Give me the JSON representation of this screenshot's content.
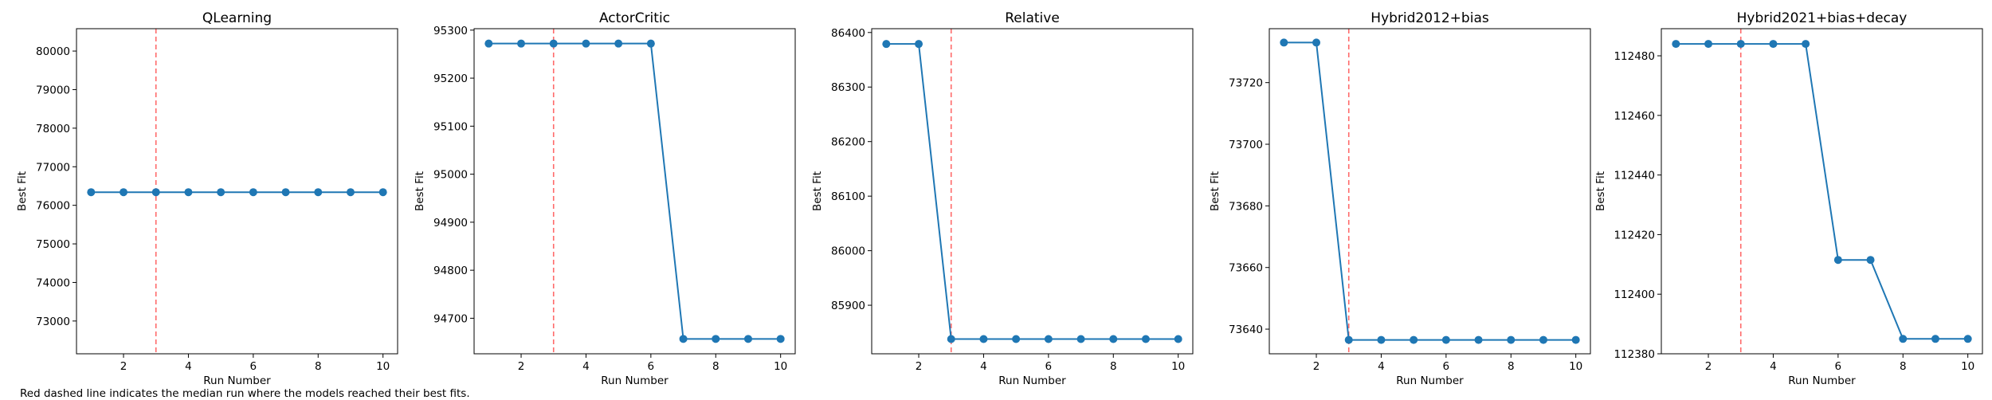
{
  "footnote": "Red dashed line indicates the median run where the models reached their best fits.",
  "colors": {
    "series": "#1f77b4",
    "median_line": "#ff5a5a",
    "axes": "#000000"
  },
  "chart_data": [
    {
      "type": "line",
      "title": "QLearning",
      "xlabel": "Run Number",
      "ylabel": "Best Fit",
      "x": [
        1,
        2,
        3,
        4,
        5,
        6,
        7,
        8,
        9,
        10
      ],
      "xlim": [
        0.55,
        10.45
      ],
      "xticks": [
        2,
        4,
        6,
        8,
        10
      ],
      "ylim": [
        72150,
        80580
      ],
      "yticks": [
        73000,
        74000,
        75000,
        76000,
        77000,
        78000,
        79000,
        80000
      ],
      "median_run": 3,
      "series": [
        {
          "values": [
            76340,
            76340,
            76340,
            76340,
            76340,
            76340,
            76340,
            76340,
            76340,
            76340
          ]
        }
      ]
    },
    {
      "type": "line",
      "title": "ActorCritic",
      "xlabel": "Run Number",
      "ylabel": "Best Fit",
      "x": [
        1,
        2,
        3,
        4,
        5,
        6,
        7,
        8,
        9,
        10
      ],
      "xlim": [
        0.55,
        10.45
      ],
      "xticks": [
        2,
        4,
        6,
        8,
        10
      ],
      "ylim": [
        94626,
        95303
      ],
      "yticks": [
        94700,
        94800,
        94900,
        95000,
        95100,
        95200,
        95300
      ],
      "median_run": 3,
      "series": [
        {
          "values": [
            95272,
            95272,
            95272,
            95272,
            95272,
            95272,
            94657,
            94657,
            94657,
            94657
          ]
        }
      ]
    },
    {
      "type": "line",
      "title": "Relative",
      "xlabel": "Run Number",
      "ylabel": "Best Fit",
      "x": [
        1,
        2,
        3,
        4,
        5,
        6,
        7,
        8,
        9,
        10
      ],
      "xlim": [
        0.55,
        10.45
      ],
      "xticks": [
        2,
        4,
        6,
        8,
        10
      ],
      "ylim": [
        85811,
        86407
      ],
      "yticks": [
        85900,
        86000,
        86100,
        86200,
        86300,
        86400
      ],
      "median_run": 3,
      "series": [
        {
          "values": [
            86379,
            86379,
            85838,
            85838,
            85838,
            85838,
            85838,
            85838,
            85838,
            85838
          ]
        }
      ]
    },
    {
      "type": "line",
      "title": "Hybrid2012+bias",
      "xlabel": "Run Number",
      "ylabel": "Best Fit",
      "x": [
        1,
        2,
        3,
        4,
        5,
        6,
        7,
        8,
        9,
        10
      ],
      "xlim": [
        0.55,
        10.45
      ],
      "xticks": [
        2,
        4,
        6,
        8,
        10
      ],
      "ylim": [
        73632.0,
        73737.5
      ],
      "yticks": [
        73640,
        73660,
        73680,
        73700,
        73720
      ],
      "median_run": 3,
      "series": [
        {
          "values": [
            73733,
            73733,
            73636.5,
            73636.5,
            73636.5,
            73636.5,
            73636.5,
            73636.5,
            73636.5,
            73636.5
          ]
        }
      ]
    },
    {
      "type": "line",
      "title": "Hybrid2021+bias+decay",
      "xlabel": "Run Number",
      "ylabel": "Best Fit",
      "x": [
        1,
        2,
        3,
        4,
        5,
        6,
        7,
        8,
        9,
        10
      ],
      "xlim": [
        0.55,
        10.45
      ],
      "xticks": [
        2,
        4,
        6,
        8,
        10
      ],
      "ylim": [
        112380.0,
        112489.1
      ],
      "yticks": [
        112380,
        112400,
        112420,
        112440,
        112460,
        112480
      ],
      "median_run": 3,
      "series": [
        {
          "values": [
            112484,
            112484,
            112484,
            112484,
            112484,
            112411.5,
            112411.5,
            112385,
            112385,
            112385
          ]
        }
      ]
    }
  ]
}
